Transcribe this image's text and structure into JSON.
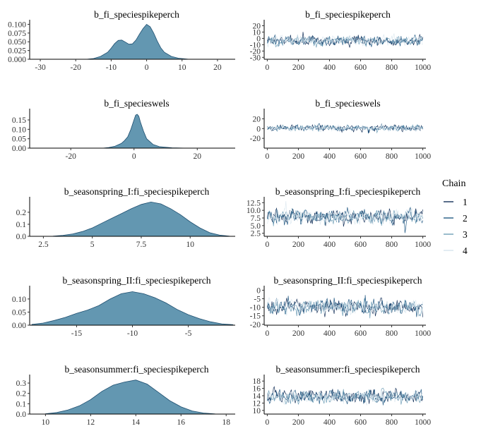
{
  "chart_data": {
    "type": "area",
    "legend": {
      "title": "Chain",
      "position": "right",
      "items": [
        {
          "label": "1",
          "color": "#011f4b"
        },
        {
          "label": "2",
          "color": "#124d7a"
        },
        {
          "label": "3",
          "color": "#6497b1"
        },
        {
          "label": "4",
          "color": "#dce8f0"
        }
      ]
    },
    "colors": {
      "density_fill": "#6397b1",
      "density_line": "#1f4f70"
    },
    "panels": [
      {
        "title": "b_fi_speciespikeperch",
        "density": {
          "xlim": [
            -33,
            25
          ],
          "ylim": [
            0,
            0.105
          ],
          "xticks": [
            -30,
            -20,
            -10,
            0,
            10,
            20
          ],
          "yticks": [
            0,
            0.025,
            0.05,
            0.075,
            0.1
          ],
          "ytick_labels": [
            "0.000",
            "0.025",
            "0.050",
            "0.075",
            "0.100"
          ],
          "x": [
            -17,
            -15,
            -13,
            -11,
            -10,
            -9,
            -8,
            -7,
            -6,
            -5,
            -4,
            -3,
            -2,
            -1,
            0,
            1,
            2,
            3,
            4,
            5,
            7,
            9,
            11,
            12
          ],
          "y": [
            0,
            0.002,
            0.008,
            0.02,
            0.032,
            0.045,
            0.054,
            0.055,
            0.049,
            0.043,
            0.044,
            0.055,
            0.072,
            0.088,
            0.1,
            0.093,
            0.075,
            0.052,
            0.033,
            0.02,
            0.008,
            0.003,
            0.001,
            0
          ]
        },
        "trace": {
          "xlim": [
            -20,
            1020
          ],
          "ylim": [
            -33,
            25
          ],
          "xticks": [
            0,
            200,
            400,
            600,
            800,
            1000
          ],
          "yticks": [
            20,
            10,
            0,
            -10,
            -20,
            -30
          ],
          "ytick_labels": [
            "20",
            "10",
            "0",
            "-10",
            "-20",
            "-30"
          ],
          "center": -4,
          "spread": 5
        }
      },
      {
        "title": "b_fi_specieswels",
        "density": {
          "xlim": [
            -33,
            32
          ],
          "ylim": [
            0,
            0.195
          ],
          "xticks": [
            -20,
            0,
            20
          ],
          "yticks": [
            0,
            0.05,
            0.1,
            0.15
          ],
          "ytick_labels": [
            "0.00",
            "0.05",
            "0.10",
            "0.15"
          ],
          "x": [
            -10,
            -8,
            -6,
            -4,
            -3,
            -2,
            -1,
            0,
            0.5,
            1,
            1.5,
            2,
            3,
            4,
            6,
            8,
            12,
            17
          ],
          "y": [
            0,
            0.003,
            0.01,
            0.025,
            0.04,
            0.06,
            0.1,
            0.15,
            0.175,
            0.18,
            0.17,
            0.14,
            0.09,
            0.05,
            0.02,
            0.008,
            0.002,
            0
          ]
        },
        "trace": {
          "xlim": [
            -20,
            1020
          ],
          "ylim": [
            -40,
            35
          ],
          "xticks": [
            0,
            200,
            400,
            600,
            800,
            1000
          ],
          "yticks": [
            20,
            0,
            -20
          ],
          "ytick_labels": [
            "20",
            "0",
            "-20"
          ],
          "center": 1,
          "spread": 4
        }
      },
      {
        "title": "b_seasonspring_I:fi_speciespikeperch",
        "density": {
          "xlim": [
            1.8,
            12.3
          ],
          "ylim": [
            0,
            0.305
          ],
          "xticks": [
            2.5,
            5,
            7.5,
            10
          ],
          "yticks": [
            0,
            0.1,
            0.2
          ],
          "ytick_labels": [
            "0.0",
            "0.1",
            "0.2"
          ],
          "x": [
            3,
            3.5,
            4,
            4.5,
            5,
            5.5,
            6,
            6.5,
            7,
            7.5,
            8,
            8.5,
            9,
            9.5,
            10,
            10.5,
            11,
            11.5,
            12
          ],
          "y": [
            0.002,
            0.008,
            0.02,
            0.04,
            0.07,
            0.11,
            0.15,
            0.19,
            0.23,
            0.265,
            0.285,
            0.27,
            0.23,
            0.18,
            0.12,
            0.07,
            0.03,
            0.01,
            0.002
          ]
        },
        "trace": {
          "xlim": [
            -20,
            1020
          ],
          "ylim": [
            1.5,
            13.5
          ],
          "xticks": [
            0,
            200,
            400,
            600,
            800,
            1000
          ],
          "yticks": [
            12.5,
            10,
            7.5,
            5,
            2.5
          ],
          "ytick_labels": [
            "12.5",
            "10.0",
            "7.5",
            "5.0",
            "2.5"
          ],
          "center": 7.8,
          "spread": 1.6
        }
      },
      {
        "title": "b_seasonspring_II:fi_speciespikeperch",
        "density": {
          "xlim": [
            -19.2,
            -0.8
          ],
          "ylim": [
            0,
            0.14
          ],
          "xticks": [
            -15,
            -10,
            -5
          ],
          "yticks": [
            0,
            0.05,
            0.1
          ],
          "ytick_labels": [
            "0.00",
            "0.05",
            "0.10"
          ],
          "x": [
            -19,
            -18,
            -17,
            -16,
            -15,
            -14,
            -13,
            -12,
            -11,
            -10,
            -9,
            -8,
            -7,
            -6,
            -5,
            -4,
            -3,
            -2,
            -1
          ],
          "y": [
            0.003,
            0.008,
            0.018,
            0.03,
            0.045,
            0.058,
            0.075,
            0.1,
            0.12,
            0.128,
            0.12,
            0.105,
            0.085,
            0.06,
            0.04,
            0.025,
            0.013,
            0.005,
            0.002
          ]
        },
        "trace": {
          "xlim": [
            -20,
            1020
          ],
          "ylim": [
            -20.5,
            1
          ],
          "xticks": [
            0,
            200,
            400,
            600,
            800,
            1000
          ],
          "yticks": [
            0,
            -5,
            -10,
            -15,
            -20
          ],
          "ytick_labels": [
            "0",
            "-5",
            "-10",
            "-15",
            "-20"
          ],
          "center": -10,
          "spread": 3
        }
      },
      {
        "title": "b_seasonsummer:fi_speciespikeperch",
        "density": {
          "xlim": [
            9.3,
            18.4
          ],
          "ylim": [
            0,
            0.355
          ],
          "xticks": [
            10,
            12,
            14,
            16,
            18
          ],
          "yticks": [
            0,
            0.1,
            0.2,
            0.3
          ],
          "ytick_labels": [
            "0.0",
            "0.1",
            "0.2",
            "0.3"
          ],
          "x": [
            10,
            10.5,
            11,
            11.5,
            12,
            12.5,
            13,
            13.5,
            14,
            14.5,
            15,
            15.5,
            16,
            16.5,
            17,
            17.5
          ],
          "y": [
            0.003,
            0.015,
            0.04,
            0.08,
            0.14,
            0.22,
            0.28,
            0.31,
            0.33,
            0.29,
            0.21,
            0.13,
            0.07,
            0.03,
            0.01,
            0.002
          ]
        },
        "trace": {
          "xlim": [
            -20,
            1020
          ],
          "ylim": [
            9,
            19
          ],
          "xticks": [
            0,
            200,
            400,
            600,
            800,
            1000
          ],
          "yticks": [
            18,
            16,
            14,
            12,
            10
          ],
          "ytick_labels": [
            "18",
            "16",
            "14",
            "12",
            "10"
          ],
          "center": 13.8,
          "spread": 1.2
        }
      }
    ]
  }
}
